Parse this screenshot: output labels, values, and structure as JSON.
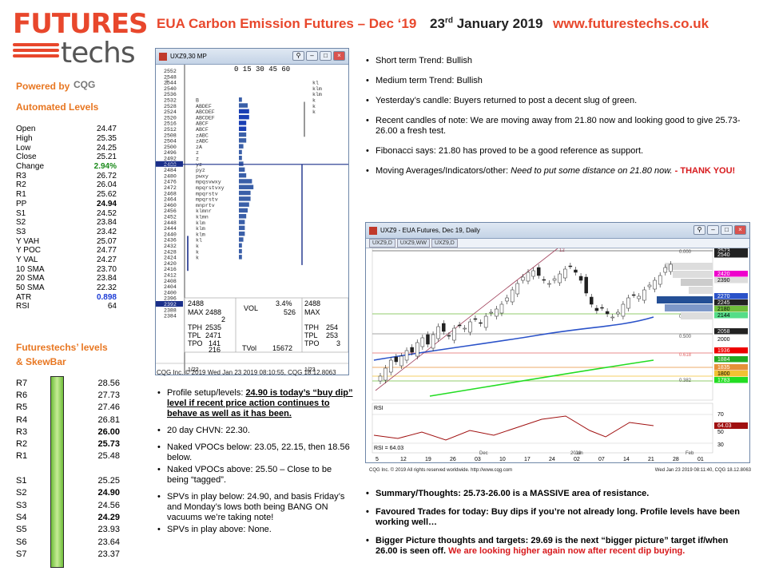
{
  "logo": {
    "futures": "FUTURES",
    "techs": "techs"
  },
  "header": {
    "title": "EUA Carbon Emission Futures – Dec ‘19",
    "date_day": "23",
    "date_suffix": "rd",
    "date_rest": "January 2019",
    "website": "www.futurestechs.co.uk"
  },
  "powered_by": "Powered by",
  "cqg_logo": "CQG",
  "automated_levels": {
    "heading": "Automated Levels",
    "rows": [
      {
        "label": "Open",
        "value": "24.47"
      },
      {
        "label": "High",
        "value": "25.35"
      },
      {
        "label": "Low",
        "value": "24.25"
      },
      {
        "label": "Close",
        "value": "25.21"
      },
      {
        "label": "Change",
        "value": "2.94%"
      },
      {
        "label": "R3",
        "value": "26.72"
      },
      {
        "label": "R2",
        "value": "26.04"
      },
      {
        "label": "R1",
        "value": "25.62"
      },
      {
        "label": "PP",
        "value": "24.94"
      },
      {
        "label": "S1",
        "value": "24.52"
      },
      {
        "label": "S2",
        "value": "23.84"
      },
      {
        "label": "S3",
        "value": "23.42"
      },
      {
        "label": "Y VAH",
        "value": "25.07"
      },
      {
        "label": "Y POC",
        "value": "24.77"
      },
      {
        "label": "Y VAL",
        "value": "24.27"
      },
      {
        "label": "10 SMA",
        "value": "23.70"
      },
      {
        "label": "20 SMA",
        "value": "23.84"
      },
      {
        "label": "50 SMA",
        "value": "22.32"
      },
      {
        "label": "ATR",
        "value": "0.898"
      },
      {
        "label": "RSI",
        "value": "64"
      }
    ]
  },
  "futurestechs_levels": {
    "heading1": "Futurestechs’ levels",
    "heading2": "& SkewBar",
    "rows": [
      {
        "label": "R7",
        "value": "28.56"
      },
      {
        "label": "R6",
        "value": "27.73"
      },
      {
        "label": "R5",
        "value": "27.46"
      },
      {
        "label": "R4",
        "value": "26.81"
      },
      {
        "label": "R3",
        "value": "26.00"
      },
      {
        "label": "R2",
        "value": "25.73"
      },
      {
        "label": "R1",
        "value": "25.48"
      },
      {
        "label": "",
        "value": ""
      },
      {
        "label": "S1",
        "value": "25.25"
      },
      {
        "label": "S2",
        "value": "24.90"
      },
      {
        "label": "S3",
        "value": "24.56"
      },
      {
        "label": "S4",
        "value": "24.29"
      },
      {
        "label": "S5",
        "value": "23.93"
      },
      {
        "label": "S6",
        "value": "23.64"
      },
      {
        "label": "S7",
        "value": "23.37"
      }
    ]
  },
  "tpo_window": {
    "title": "UXZ9,30 MP",
    "header_ticks": "0  15  30  45  60",
    "prices": [
      "2552",
      "2548",
      "2544",
      "2540",
      "2536",
      "2532",
      "2528",
      "2524",
      "2520",
      "2516",
      "2512",
      "2508",
      "2504",
      "2500",
      "2496",
      "2492",
      "2488",
      "2484",
      "2480",
      "2476",
      "2472",
      "2468",
      "2464",
      "2460",
      "2456",
      "2452",
      "2448",
      "2444",
      "2440",
      "2436",
      "2432",
      "2428",
      "2424",
      "2420",
      "2416",
      "2412",
      "2408",
      "2404",
      "2400",
      "2396",
      "2392",
      "2388",
      "2384"
    ],
    "highlight_price": "2488",
    "highlight_price2": "2392",
    "letters": {
      "2544": "kl",
      "2540": "klm",
      "2536": "klm",
      "2532": "k",
      "2528": "k",
      "2524": "k",
      "2532b": "B",
      "2528b": "ABDEF",
      "2524b": "ABCDEF",
      "2520b": "ABCDEF",
      "2516b": "ABCF",
      "2512b": "ABCF",
      "2508b": "zABC",
      "2504b": "zABC",
      "2500b": "zA",
      "2496b": "z",
      "2492b": "z",
      "2488b": "yz",
      "2484b": "pyz",
      "2480b": "pwxy",
      "2476b": "mpqsvwxy",
      "2472b": "mpqrstvxy",
      "2468b": "mpqrstv",
      "2464b": "mpqrstv",
      "2460b": "mnprtv",
      "2456b": "klmnr",
      "2452b": "klmn",
      "2448b": "klm",
      "2444b": "klm",
      "2440b": "klm",
      "2436b": "kl",
      "2432b": "k",
      "2428b": "k",
      "2424b": "k"
    },
    "stats": {
      "price": "2488",
      "max_label": "MAX",
      "max_val": "2488",
      "max_sub": "2",
      "tph_label": "TPH",
      "tph": "2535",
      "tpl_label": "TPL",
      "tpl": "2471",
      "tpo_label": "TPO",
      "tpo": "141",
      "tpo_sub": "216",
      "vol_label": "VOL",
      "vol_pct": "3.4%",
      "vol_val": "526",
      "tvol_label": "TVol",
      "tvol": "15672",
      "price_r": "2488",
      "max_label_r": "MAX",
      "tph_r": "254",
      "tpl_r": "253",
      "tpo_r": "3"
    },
    "footer_left": "1/22",
    "footer_right": "1/23"
  },
  "tpo_caption": "CQG Inc. © 2019    Wed Jan 23 2019 08:10:55, CQG 18.12.8063",
  "notes_right": [
    {
      "text": "Short term Trend: Bullish"
    },
    {
      "text": "Medium term Trend: Bullish"
    },
    {
      "text": "Yesterday’s candle: Buyers returned to post a decent slug of green."
    },
    {
      "text": "Recent candles of note: We are moving away from 21.80 now and looking good to give 25.73-26.00 a fresh test."
    },
    {
      "text": "Fibonacci says: 21.80 has proved to be a good reference as support."
    },
    {
      "label": "Moving Averages/Indicators/other: ",
      "italic": "Need to put some distance on 21.80 now.",
      "red": "  - THANK YOU!"
    }
  ],
  "notes_mid": [
    {
      "label": "Profile setup/levels: ",
      "underline": "24.90 is today’s “buy dip” level if recent price action continues to behave as well as it has been."
    },
    {
      "text": "20 day CHVN: 22.30."
    },
    {
      "text": "Naked VPOCs below: 23.05, 22.15, then 18.56 below."
    },
    {
      "text": "Naked VPOCs above: 25.50 – Close to be being “tagged”."
    },
    {
      "text": "SPVs in play below: 24.90, and basis Friday’s and Monday’s lows both being BANG ON vacuums we’re taking note!"
    },
    {
      "text": "SPVs in play above: None."
    }
  ],
  "chart_window": {
    "title": "UXZ9 - EUA Futures, Dec 19, Daily",
    "tabs": [
      "UXZ9,D",
      "UXZ9,WW",
      "UXZ9,D"
    ],
    "right_scale": [
      "2573",
      "2540",
      "2420",
      "2390",
      "2270",
      "2245",
      "2180",
      "2144",
      "2058",
      "2000",
      "1936",
      "1884",
      "1835",
      "1800",
      "1783"
    ],
    "fib_labels": [
      "0.000",
      "0.382",
      "0.500",
      "0.618",
      "0.382"
    ],
    "rsi_label": "RSI",
    "rsi_scale": [
      "70",
      "64.03",
      "50",
      "30"
    ],
    "rsi_value_label": "RSI =  64.03",
    "x_labels": [
      "5",
      "12",
      "19",
      "26",
      "03",
      "10",
      "17",
      "24",
      "02",
      "07",
      "14",
      "21",
      "28",
      "01"
    ],
    "month_labels": [
      "Dec",
      "2019",
      "Jan",
      "Feb"
    ],
    "candle_marker": "12"
  },
  "chart_caption_left": "CQG Inc. © 2019 All rights reserved worldwide. http://www.cqg.com",
  "chart_caption_right": "Wed Jan 23 2019 08:11:40, CQG 18.12.8063",
  "notes_bottom": [
    {
      "text": "Summary/Thoughts:  25.73-26.00 is a MASSIVE area of resistance."
    },
    {
      "text": "Favoured Trades for today:  Buy dips if you’re not already long. Profile levels have been working well…"
    },
    {
      "text": "Bigger Picture thoughts and targets: 29.69 is the next “bigger picture” target if/when 26.00 is seen off.",
      "red": " We are looking higher again now after recent dip buying."
    }
  ],
  "colors": {
    "brand_orange": "#e8472c",
    "heading_orange": "#e87722",
    "positive_green": "#1a8a1a",
    "atr_blue": "#1b3bd6",
    "alert_red": "#d7191c"
  }
}
